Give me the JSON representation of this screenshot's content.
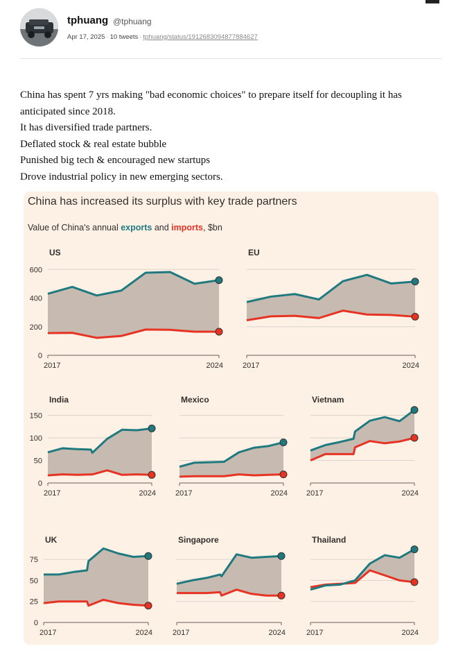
{
  "tweet": {
    "author_name": "tphuang",
    "author_handle": "@tphuang",
    "date": "Apr 17, 2025",
    "tweet_count": "10 tweets",
    "status_link": "tphuang/status/1912683094877884627",
    "lines": [
      "China has spent 7 yrs making \"bad economic choices\" to prepare itself for decoupling it has anticipated since 2018.",
      "It has diversified trade partners.",
      "Deflated stock & real estate bubble",
      "Punished big tech & encouraged new startups",
      "Drove industrial policy in new emerging sectors."
    ]
  },
  "figure": {
    "title": "China has increased its surplus with key trade partners",
    "subtitle_prefix": "Value of China's annual ",
    "subtitle_exports": "exports",
    "subtitle_and": " and ",
    "subtitle_imports": "imports",
    "subtitle_suffix": ", $bn",
    "colors": {
      "exports": "#1f7a80",
      "imports": "#e63323",
      "fill": "#c7bab0",
      "background": "#fdf0e4",
      "grid": "#dcd4cc"
    }
  },
  "chart_data": [
    {
      "type": "area",
      "title": "US",
      "x_ticks": [
        "2017",
        "2024"
      ],
      "y_ticks": [
        0,
        200,
        400,
        600
      ],
      "ylim": [
        0,
        640
      ],
      "exports": [
        [
          2017,
          430
        ],
        [
          2018,
          478
        ],
        [
          2019,
          418
        ],
        [
          2020,
          452
        ],
        [
          2021,
          577
        ],
        [
          2022,
          582
        ],
        [
          2023,
          500
        ],
        [
          2024,
          525
        ]
      ],
      "imports": [
        [
          2017,
          155
        ],
        [
          2018,
          157
        ],
        [
          2019,
          122
        ],
        [
          2020,
          135
        ],
        [
          2021,
          180
        ],
        [
          2022,
          178
        ],
        [
          2023,
          165
        ],
        [
          2024,
          165
        ]
      ]
    },
    {
      "type": "area",
      "title": "EU",
      "x_ticks": [
        "2017",
        "2024"
      ],
      "y_ticks": [
        0,
        200,
        400,
        600
      ],
      "ylim": [
        0,
        640
      ],
      "exports": [
        [
          2017,
          372
        ],
        [
          2018,
          410
        ],
        [
          2019,
          428
        ],
        [
          2020,
          390
        ],
        [
          2021,
          518
        ],
        [
          2022,
          562
        ],
        [
          2023,
          502
        ],
        [
          2024,
          515
        ]
      ],
      "imports": [
        [
          2017,
          245
        ],
        [
          2018,
          272
        ],
        [
          2019,
          276
        ],
        [
          2020,
          260
        ],
        [
          2021,
          312
        ],
        [
          2022,
          285
        ],
        [
          2023,
          282
        ],
        [
          2024,
          270
        ]
      ]
    },
    {
      "type": "area",
      "title": "India",
      "x_ticks": [
        "2017",
        "2024"
      ],
      "y_ticks": [
        0,
        50,
        100,
        150
      ],
      "ylim": [
        0,
        160
      ],
      "exports": [
        [
          2017,
          68
        ],
        [
          2018,
          77
        ],
        [
          2019,
          75
        ],
        [
          2019.9,
          74
        ],
        [
          2020,
          67
        ],
        [
          2021,
          98
        ],
        [
          2022,
          118
        ],
        [
          2023,
          117
        ],
        [
          2024,
          121
        ]
      ],
      "imports": [
        [
          2017,
          17
        ],
        [
          2018,
          19
        ],
        [
          2019,
          18
        ],
        [
          2020,
          19
        ],
        [
          2021,
          28
        ],
        [
          2022,
          18
        ],
        [
          2023,
          19
        ],
        [
          2024,
          18
        ]
      ]
    },
    {
      "type": "area",
      "title": "Mexico",
      "x_ticks": [
        "2017",
        "2024"
      ],
      "y_ticks": [
        0,
        50,
        100,
        150
      ],
      "ylim": [
        0,
        160
      ],
      "exports": [
        [
          2017,
          36
        ],
        [
          2018,
          45
        ],
        [
          2019,
          46
        ],
        [
          2020,
          47
        ],
        [
          2021,
          68
        ],
        [
          2022,
          78
        ],
        [
          2023,
          82
        ],
        [
          2024,
          90
        ]
      ],
      "imports": [
        [
          2017,
          14
        ],
        [
          2018,
          15
        ],
        [
          2019,
          15
        ],
        [
          2020,
          15
        ],
        [
          2021,
          19
        ],
        [
          2022,
          17
        ],
        [
          2023,
          18
        ],
        [
          2024,
          19
        ]
      ]
    },
    {
      "type": "area",
      "title": "Vietnam",
      "x_ticks": [
        "2017",
        "2024"
      ],
      "y_ticks": [
        0,
        50,
        100,
        150
      ],
      "ylim": [
        0,
        160
      ],
      "exports": [
        [
          2017,
          72
        ],
        [
          2018,
          84
        ],
        [
          2019,
          91
        ],
        [
          2019.9,
          98
        ],
        [
          2020,
          114
        ],
        [
          2021,
          138
        ],
        [
          2022,
          146
        ],
        [
          2023,
          137
        ],
        [
          2024,
          162
        ]
      ],
      "imports": [
        [
          2017,
          50
        ],
        [
          2018,
          64
        ],
        [
          2019,
          64
        ],
        [
          2019.9,
          64
        ],
        [
          2020,
          79
        ],
        [
          2021,
          93
        ],
        [
          2022,
          88
        ],
        [
          2023,
          92
        ],
        [
          2024,
          100
        ]
      ]
    },
    {
      "type": "area",
      "title": "UK",
      "x_ticks": [
        "2017",
        "2024"
      ],
      "y_ticks": [
        0,
        25,
        50,
        75
      ],
      "ylim": [
        0,
        85
      ],
      "exports": [
        [
          2017,
          57
        ],
        [
          2018,
          57
        ],
        [
          2019,
          60
        ],
        [
          2019.9,
          62
        ],
        [
          2020,
          73
        ],
        [
          2021,
          88
        ],
        [
          2022,
          82
        ],
        [
          2023,
          78
        ],
        [
          2024,
          79
        ]
      ],
      "imports": [
        [
          2017,
          23
        ],
        [
          2018,
          25
        ],
        [
          2019,
          25
        ],
        [
          2019.9,
          25
        ],
        [
          2020,
          20
        ],
        [
          2021,
          27
        ],
        [
          2022,
          23
        ],
        [
          2023,
          21
        ],
        [
          2024,
          20
        ]
      ]
    },
    {
      "type": "area",
      "title": "Singapore",
      "x_ticks": [
        "2017",
        "2024"
      ],
      "y_ticks": [
        0,
        25,
        50,
        75
      ],
      "ylim": [
        0,
        85
      ],
      "exports": [
        [
          2017,
          46
        ],
        [
          2018,
          50
        ],
        [
          2019,
          53
        ],
        [
          2019.9,
          57
        ],
        [
          2020,
          55
        ],
        [
          2021,
          81
        ],
        [
          2022,
          77
        ],
        [
          2023,
          78
        ],
        [
          2024,
          79
        ]
      ],
      "imports": [
        [
          2017,
          35
        ],
        [
          2018,
          35
        ],
        [
          2019,
          35
        ],
        [
          2019.9,
          36
        ],
        [
          2020,
          32
        ],
        [
          2021,
          39
        ],
        [
          2022,
          34
        ],
        [
          2023,
          32
        ],
        [
          2024,
          32
        ]
      ]
    },
    {
      "type": "area",
      "title": "Thailand",
      "x_ticks": [
        "2017",
        "2024"
      ],
      "y_ticks": [
        0,
        25,
        50,
        75
      ],
      "ylim": [
        0,
        85
      ],
      "exports": [
        [
          2017,
          39
        ],
        [
          2018,
          44
        ],
        [
          2019,
          45
        ],
        [
          2020,
          50
        ],
        [
          2021,
          70
        ],
        [
          2022,
          80
        ],
        [
          2023,
          77
        ],
        [
          2024,
          87
        ]
      ],
      "imports": [
        [
          2017,
          42
        ],
        [
          2018,
          45
        ],
        [
          2019,
          46
        ],
        [
          2020,
          47
        ],
        [
          2021,
          62
        ],
        [
          2022,
          56
        ],
        [
          2023,
          50
        ],
        [
          2024,
          48
        ]
      ]
    }
  ]
}
